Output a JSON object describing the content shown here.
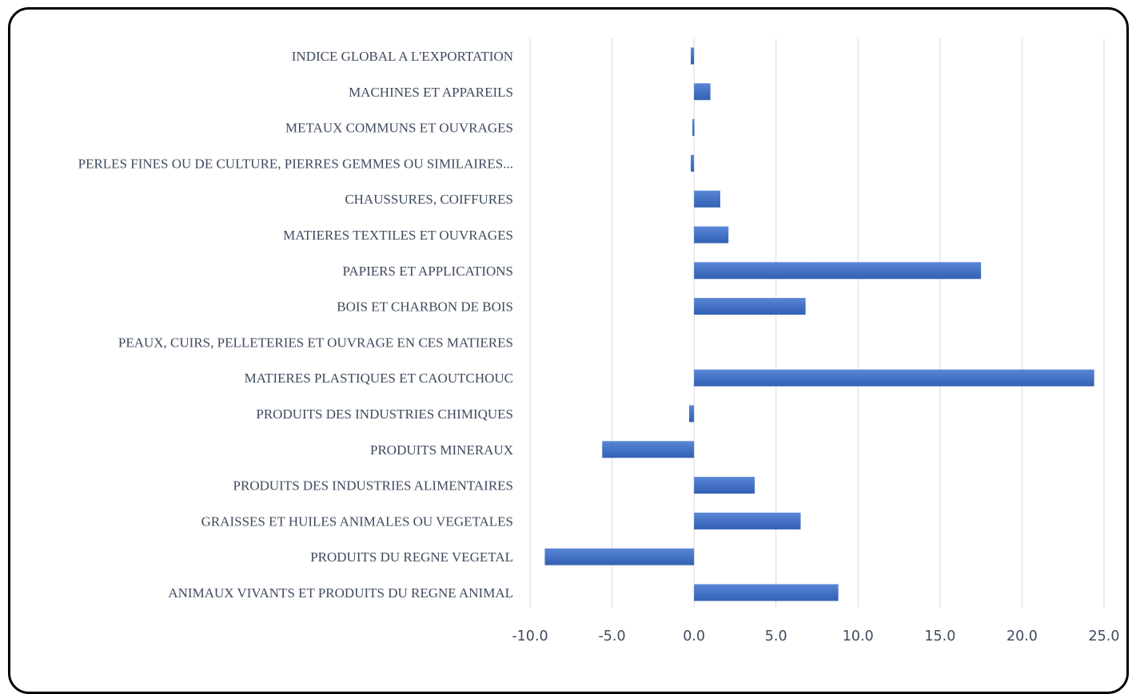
{
  "chart_data": {
    "type": "bar",
    "orientation": "horizontal",
    "categories": [
      "INDICE GLOBAL A L'EXPORTATION",
      "MACHINES ET APPAREILS",
      "METAUX COMMUNS ET OUVRAGES",
      "PERLES FINES OU DE CULTURE, PIERRES GEMMES OU SIMILAIRES...",
      "CHAUSSURES, COIFFURES",
      "MATIERES TEXTILES ET OUVRAGES",
      "PAPIERS ET APPLICATIONS",
      "BOIS ET CHARBON DE BOIS",
      "PEAUX, CUIRS, PELLETERIES ET OUVRAGE EN CES MATIERES",
      "MATIERES PLASTIQUES ET CAOUTCHOUC",
      "PRODUITS DES INDUSTRIES CHIMIQUES",
      "PRODUITS MINERAUX",
      "PRODUITS DES INDUSTRIES ALIMENTAIRES",
      "GRAISSES ET HUILES ANIMALES OU VEGETALES",
      "PRODUITS DU REGNE VEGETAL",
      "ANIMAUX VIVANTS ET PRODUITS DU REGNE ANIMAL"
    ],
    "values": [
      -0.2,
      1.0,
      -0.1,
      -0.2,
      1.6,
      2.1,
      17.5,
      6.8,
      0.0,
      24.4,
      -0.3,
      -5.6,
      3.7,
      6.5,
      -9.1,
      8.8
    ],
    "xlim": [
      -10,
      25
    ],
    "xticks": [
      -10,
      -5,
      0,
      5,
      10,
      15,
      20,
      25
    ],
    "xtick_labels": [
      "-10.0",
      "-5.0",
      "0.0",
      "5.0",
      "10.0",
      "15.0",
      "20.0",
      "25.0"
    ],
    "title": "",
    "xlabel": "",
    "ylabel": "",
    "grid": "vertical",
    "legend": "none",
    "bar_color": "#4472c4"
  }
}
